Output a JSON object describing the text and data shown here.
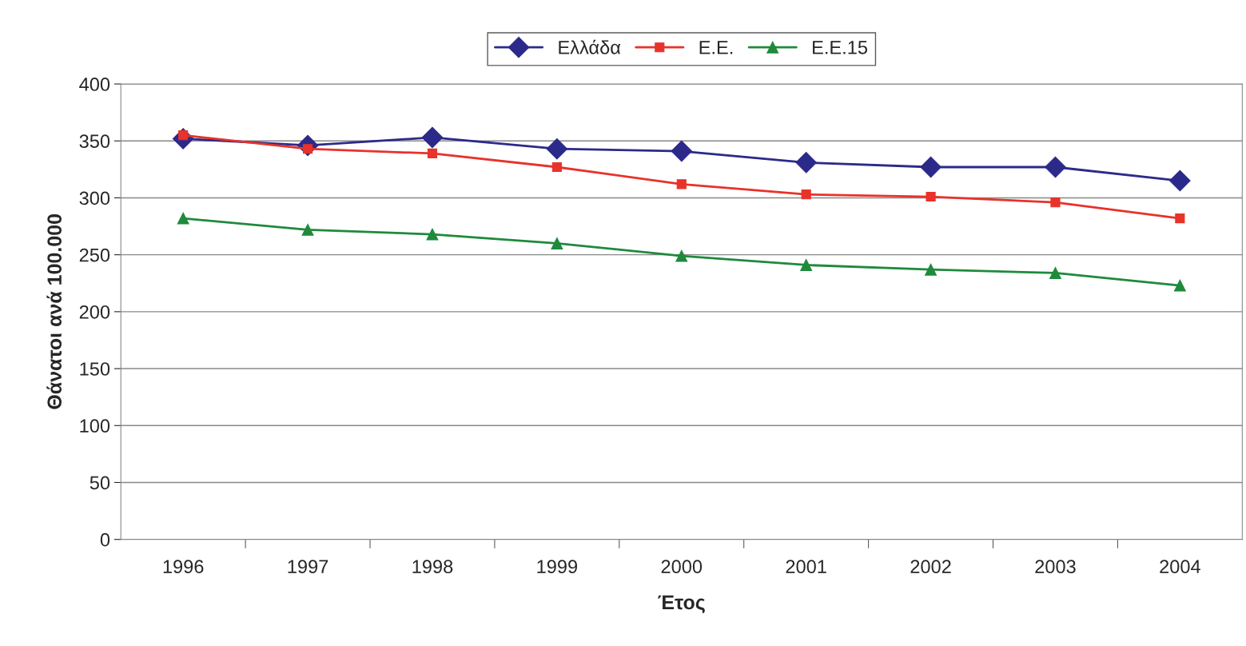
{
  "chart_data": {
    "type": "line",
    "xlabel": "Έτος",
    "ylabel": "Θάνατοι ανά 100.000",
    "categories": [
      "1996",
      "1997",
      "1998",
      "1999",
      "2000",
      "2001",
      "2002",
      "2003",
      "2004"
    ],
    "series": [
      {
        "name": "Ελλάδα",
        "color": "#2b2a8a",
        "marker": "diamond",
        "values": [
          352,
          346,
          353,
          343,
          341,
          331,
          327,
          327,
          315
        ]
      },
      {
        "name": "Ε.Ε.",
        "color": "#e8322a",
        "marker": "square",
        "values": [
          355,
          343,
          339,
          327,
          312,
          303,
          301,
          296,
          282
        ]
      },
      {
        "name": "Ε.Ε.15",
        "color": "#1f8a3c",
        "marker": "triangle",
        "values": [
          282,
          272,
          268,
          260,
          249,
          241,
          237,
          234,
          223
        ]
      }
    ],
    "ylim": [
      0,
      400
    ],
    "yticks": [
      0,
      50,
      100,
      150,
      200,
      250,
      300,
      350,
      400
    ],
    "grid": "y",
    "legend": "top",
    "line_style": "solid"
  }
}
